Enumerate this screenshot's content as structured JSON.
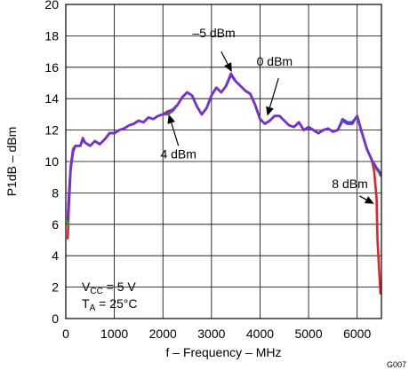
{
  "chart_data": {
    "type": "line",
    "xlabel": "f – Frequency – MHz",
    "ylabel": "P1dB – dBm",
    "xlim": [
      0,
      6500
    ],
    "ylim": [
      0,
      20
    ],
    "xticks": [
      0,
      1000,
      2000,
      3000,
      4000,
      5000,
      6000
    ],
    "yticks": [
      0,
      2,
      4,
      6,
      8,
      10,
      12,
      14,
      16,
      18,
      20
    ],
    "grid": true,
    "series": [
      {
        "name": "8 dBm",
        "color": "#e8202a",
        "x": [
          40,
          60,
          100,
          150,
          200,
          300,
          350,
          400,
          500,
          600,
          700,
          800,
          900,
          1000,
          1100,
          1200,
          1300,
          1400,
          1500,
          1600,
          1700,
          1800,
          1900,
          2000,
          2100,
          2200,
          2300,
          2400,
          2500,
          2600,
          2700,
          2800,
          2900,
          3000,
          3100,
          3200,
          3300,
          3400,
          3500,
          3600,
          3700,
          3800,
          3900,
          4000,
          4100,
          4200,
          4300,
          4400,
          4500,
          4600,
          4700,
          4800,
          4900,
          5000,
          5100,
          5200,
          5300,
          5400,
          5500,
          5600,
          5700,
          5800,
          5900,
          6000,
          6100,
          6200,
          6300,
          6350,
          6400,
          6420,
          6450,
          6480
        ],
        "y": [
          5.1,
          6.8,
          9.5,
          10.6,
          11.0,
          11.0,
          11.4,
          11.2,
          11.0,
          11.3,
          11.1,
          11.4,
          11.8,
          11.8,
          12.0,
          12.1,
          12.3,
          12.4,
          12.6,
          12.5,
          12.8,
          12.7,
          12.9,
          13.0,
          13.2,
          13.3,
          13.6,
          14.1,
          14.4,
          14.2,
          13.5,
          13.0,
          13.4,
          14.2,
          14.7,
          14.4,
          14.8,
          15.6,
          15.1,
          14.8,
          14.5,
          14.3,
          13.6,
          12.7,
          12.4,
          12.6,
          12.9,
          12.9,
          12.6,
          12.3,
          12.2,
          12.5,
          12.0,
          12.2,
          12.0,
          11.8,
          12.0,
          12.1,
          11.9,
          12.0,
          12.6,
          12.4,
          12.4,
          12.9,
          11.8,
          10.8,
          10.1,
          9.4,
          7.7,
          5.0,
          3.2,
          1.6
        ]
      },
      {
        "name": "4 dBm",
        "color": "#2aa02a",
        "x": [
          40,
          60,
          100,
          150,
          200,
          300,
          350,
          400,
          500,
          600,
          700,
          800,
          900,
          1000,
          1100,
          1200,
          1300,
          1400,
          1500,
          1600,
          1700,
          1800,
          1900,
          2000,
          2100,
          2200,
          2300,
          2400,
          2500,
          2600,
          2700,
          2800,
          2900,
          3000,
          3100,
          3200,
          3300,
          3400,
          3500,
          3600,
          3700,
          3800,
          3900,
          4000,
          4100,
          4200,
          4300,
          4400,
          4500,
          4600,
          4700,
          4800,
          4900,
          5000,
          5100,
          5200,
          5300,
          5400,
          5500,
          5600,
          5700,
          5800,
          5900,
          6000,
          6100,
          6200,
          6300,
          6400,
          6450,
          6480
        ],
        "y": [
          6.0,
          7.5,
          9.6,
          10.7,
          11.0,
          11.0,
          11.4,
          11.2,
          11.0,
          11.3,
          11.1,
          11.4,
          11.8,
          11.8,
          12.0,
          12.1,
          12.3,
          12.4,
          12.6,
          12.5,
          12.8,
          12.7,
          12.9,
          13.0,
          13.0,
          13.2,
          13.6,
          14.1,
          14.4,
          14.2,
          13.5,
          13.0,
          13.4,
          14.2,
          14.7,
          14.4,
          14.8,
          15.5,
          15.1,
          14.8,
          14.5,
          14.3,
          13.6,
          12.7,
          12.4,
          12.6,
          12.9,
          12.9,
          12.6,
          12.3,
          12.2,
          12.5,
          12.0,
          12.2,
          12.0,
          11.8,
          12.0,
          12.1,
          11.9,
          12.0,
          12.6,
          12.4,
          12.4,
          12.9,
          11.8,
          10.8,
          10.1,
          9.5,
          9.3,
          9.1
        ]
      },
      {
        "name": "0 dBm",
        "color": "#1f4fd8",
        "x": [
          40,
          60,
          100,
          150,
          200,
          300,
          350,
          400,
          500,
          600,
          700,
          800,
          900,
          1000,
          1100,
          1200,
          1300,
          1400,
          1500,
          1600,
          1700,
          1800,
          1900,
          2000,
          2100,
          2200,
          2300,
          2400,
          2500,
          2600,
          2700,
          2800,
          2900,
          3000,
          3100,
          3200,
          3300,
          3400,
          3500,
          3600,
          3700,
          3800,
          3900,
          4000,
          4100,
          4200,
          4300,
          4400,
          4500,
          4600,
          4700,
          4800,
          4900,
          5000,
          5100,
          5200,
          5300,
          5400,
          5500,
          5600,
          5700,
          5800,
          5900,
          6000,
          6100,
          6200,
          6300,
          6400,
          6450,
          6480
        ],
        "y": [
          6.3,
          7.6,
          9.6,
          10.7,
          11.0,
          11.0,
          11.4,
          11.2,
          11.0,
          11.3,
          11.1,
          11.4,
          11.8,
          11.8,
          12.0,
          12.1,
          12.3,
          12.4,
          12.6,
          12.5,
          12.8,
          12.7,
          12.9,
          13.0,
          13.1,
          13.3,
          13.6,
          14.1,
          14.4,
          14.2,
          13.5,
          13.0,
          13.4,
          14.2,
          14.7,
          14.4,
          14.8,
          15.5,
          15.1,
          14.8,
          14.5,
          14.3,
          13.6,
          12.7,
          12.4,
          12.6,
          12.9,
          12.9,
          12.6,
          12.3,
          12.2,
          12.5,
          12.0,
          12.2,
          12.0,
          11.8,
          12.0,
          12.1,
          11.9,
          12.0,
          12.7,
          12.5,
          12.5,
          12.9,
          11.8,
          10.8,
          10.1,
          9.6,
          9.4,
          9.2
        ]
      },
      {
        "name": "–5 dBm",
        "color": "#7a2fd0",
        "x": [
          40,
          60,
          100,
          150,
          200,
          300,
          350,
          400,
          500,
          600,
          700,
          800,
          900,
          1000,
          1100,
          1200,
          1300,
          1400,
          1500,
          1600,
          1700,
          1800,
          1900,
          2000,
          2100,
          2200,
          2300,
          2400,
          2500,
          2600,
          2700,
          2800,
          2900,
          3000,
          3100,
          3200,
          3300,
          3400,
          3500,
          3600,
          3700,
          3800,
          3900,
          4000,
          4100,
          4200,
          4300,
          4400,
          4500,
          4600,
          4700,
          4800,
          4900,
          5000,
          5100,
          5200,
          5300,
          5400,
          5500,
          5600,
          5700,
          5800,
          5900,
          6000,
          6100,
          6200,
          6300,
          6400,
          6450,
          6480
        ],
        "y": [
          6.4,
          7.7,
          9.7,
          10.8,
          11.0,
          11.0,
          11.5,
          11.2,
          11.0,
          11.3,
          11.1,
          11.4,
          11.8,
          11.8,
          12.0,
          12.1,
          12.3,
          12.4,
          12.6,
          12.5,
          12.8,
          12.7,
          12.9,
          13.0,
          13.1,
          13.3,
          13.6,
          14.1,
          14.4,
          14.2,
          13.5,
          13.0,
          13.4,
          14.2,
          14.7,
          14.4,
          14.8,
          15.6,
          15.1,
          14.8,
          14.5,
          14.3,
          13.6,
          12.7,
          12.4,
          12.6,
          12.9,
          12.9,
          12.6,
          12.3,
          12.2,
          12.5,
          12.0,
          12.2,
          12.0,
          11.8,
          12.0,
          12.1,
          11.9,
          12.0,
          12.6,
          12.4,
          12.4,
          12.9,
          11.8,
          10.8,
          10.1,
          9.6,
          9.4,
          9.2
        ]
      }
    ],
    "annotations": [
      {
        "name": "annotation-minus5dbm",
        "text": "–5 dBm",
        "label_at": [
          3050,
          17.9
        ],
        "arrow_from": [
          3200,
          17.0
        ],
        "arrow_to": [
          3420,
          15.7
        ]
      },
      {
        "name": "annotation-0dbm",
        "text": "0 dBm",
        "label_at": [
          4300,
          16.1
        ],
        "arrow_from": [
          4380,
          15.3
        ],
        "arrow_to": [
          4150,
          12.9
        ]
      },
      {
        "name": "annotation-4dbm",
        "text": "4 dBm",
        "label_at": [
          2320,
          10.2
        ],
        "arrow_from": [
          2320,
          11.0
        ],
        "arrow_to": [
          2120,
          13.0
        ]
      },
      {
        "name": "annotation-8dbm",
        "text": "8 dBm",
        "label_at": [
          5850,
          8.3
        ],
        "arrow_from": [
          6050,
          7.8
        ],
        "arrow_to": [
          6350,
          7.3
        ]
      }
    ],
    "conditions": {
      "vcc": {
        "main": "V",
        "sub": "CC",
        "value": " = 5 V"
      },
      "ta": {
        "main": "T",
        "sub": "A",
        "value": " = 25°C"
      }
    },
    "code": "G007"
  }
}
